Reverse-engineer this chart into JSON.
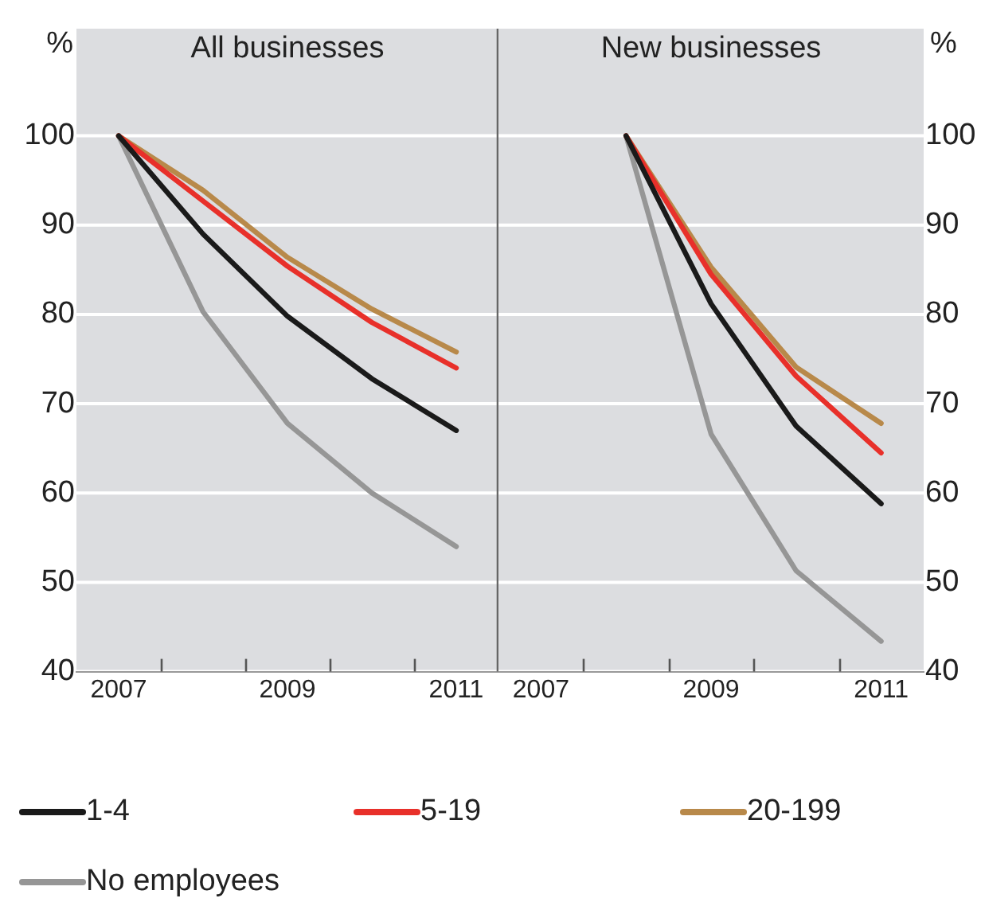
{
  "chart_data": [
    {
      "type": "line",
      "title": "All businesses",
      "ylabel": "%",
      "categories": [
        "2007",
        null,
        "2009",
        null,
        "2011"
      ],
      "ylim": [
        40,
        112
      ],
      "yticks": [
        40,
        50,
        60,
        70,
        80,
        90,
        100
      ],
      "grid": "y",
      "legend": "bottom",
      "marker": "none",
      "line_style": "solid",
      "series": [
        {
          "name": "1-4",
          "color": "#1a1a1a",
          "values": [
            100,
            89,
            79.8,
            72.8,
            67
          ]
        },
        {
          "name": "5-19",
          "color": "#e8302a",
          "values": [
            100,
            92.7,
            85.4,
            79.1,
            74
          ]
        },
        {
          "name": "20-199",
          "color": "#b8894a",
          "values": [
            100,
            93.9,
            86.4,
            80.6,
            75.8
          ]
        },
        {
          "name": "No employees",
          "color": "#969696",
          "values": [
            100,
            80.3,
            67.8,
            60,
            54
          ]
        }
      ]
    },
    {
      "type": "line",
      "title": "New businesses",
      "ylabel": "%",
      "categories": [
        "2007",
        null,
        "2009",
        null,
        "2011"
      ],
      "ylim": [
        40,
        112
      ],
      "yticks": [
        40,
        50,
        60,
        70,
        80,
        90,
        100
      ],
      "grid": "y",
      "legend": "bottom",
      "marker": "none",
      "line_style": "solid",
      "series": [
        {
          "name": "1-4",
          "color": "#1a1a1a",
          "values": [
            null,
            100,
            81.2,
            67.5,
            58.8
          ]
        },
        {
          "name": "5-19",
          "color": "#e8302a",
          "values": [
            null,
            100,
            84.5,
            73.1,
            64.5
          ]
        },
        {
          "name": "20-199",
          "color": "#b8894a",
          "values": [
            null,
            100,
            85.3,
            74.1,
            67.8
          ]
        },
        {
          "name": "No employees",
          "color": "#969696",
          "values": [
            null,
            100,
            66.6,
            51.3,
            43.4
          ]
        }
      ]
    }
  ]
}
